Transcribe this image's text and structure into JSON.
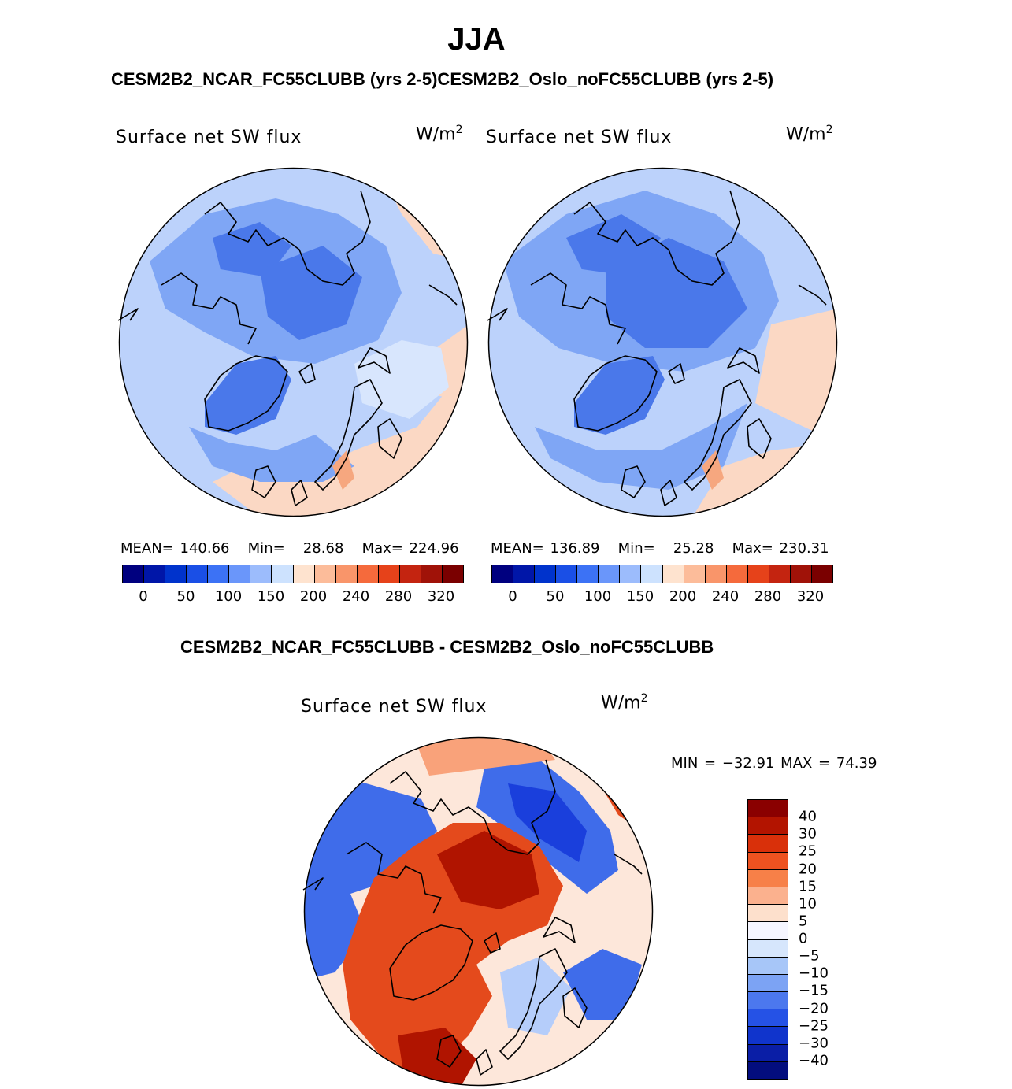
{
  "figure": {
    "season": "JJA",
    "case_title": "CESM2B2_NCAR_FC55CLUBB (yrs 2-5)CESM2B2_Oslo_noFC55CLUBB (yrs 2-5)",
    "diff_title": "CESM2B2_NCAR_FC55CLUBB - CESM2B2_Oslo_noFC55CLUBB"
  },
  "panels": [
    {
      "id": "ncar",
      "variable": "Surface net SW flux",
      "units_base": "W/m",
      "units_exp": "2",
      "stats": {
        "mean_label": "MEAN=",
        "mean": "140.66",
        "min_label": "Min=",
        "min": "28.68",
        "max_label": "Max=",
        "max": "224.96"
      }
    },
    {
      "id": "oslo",
      "variable": "Surface net SW flux",
      "units_base": "W/m",
      "units_exp": "2",
      "stats": {
        "mean_label": "MEAN=",
        "mean": "136.89",
        "min_label": "Min=",
        "min": "25.28",
        "max_label": "Max=",
        "max": "230.31"
      }
    }
  ],
  "diff_panel": {
    "variable": "Surface net SW flux",
    "units_base": "W/m",
    "units_exp": "2",
    "stats_text": "MIN = −32.91 MAX =  74.39"
  },
  "colorbar_abs": {
    "colors": [
      "#00007f",
      "#0016a8",
      "#0033cc",
      "#1a4fe6",
      "#3c72f5",
      "#6a96fa",
      "#9cbcfc",
      "#cde2fe",
      "#fee3cf",
      "#fcbc9a",
      "#f9956a",
      "#f56a3c",
      "#e6421a",
      "#c42410",
      "#a01208",
      "#7a0000"
    ],
    "tick_labels": [
      "0",
      "50",
      "100",
      "150",
      "200",
      "240",
      "280",
      "320"
    ]
  },
  "colorbar_diff": {
    "colors_top_to_bottom": [
      "#8a0000",
      "#b31400",
      "#d9300a",
      "#ee5220",
      "#f78048",
      "#fbb18e",
      "#fde0cc",
      "#f6f6ff",
      "#d6e6fc",
      "#a7c6f8",
      "#7ca3f4",
      "#4c78ee",
      "#2552e6",
      "#1034cc",
      "#0a1ea6",
      "#030d7e"
    ],
    "tick_labels": [
      "40",
      "30",
      "25",
      "20",
      "15",
      "10",
      "5",
      "0",
      "−5",
      "−10",
      "−15",
      "−20",
      "−25",
      "−30",
      "−40"
    ]
  },
  "map_colors": {
    "abs_background": "#bcd2fb",
    "abs_medium": "#7fa6f5",
    "abs_strong": "#4a78ea",
    "abs_light": "#d8e6fd",
    "abs_warm": "#fbd8c4",
    "abs_warm2": "#f6a77f",
    "diff_warm_strong": "#b01400",
    "diff_warm": "#e44a1c",
    "diff_warm_light": "#f9a27a",
    "diff_neutral": "#fde7da",
    "diff_cool": "#3f6cea",
    "diff_cool_strong": "#1a3fdc",
    "diff_cool_light": "#b5cdfa",
    "coastline": "#000000"
  }
}
